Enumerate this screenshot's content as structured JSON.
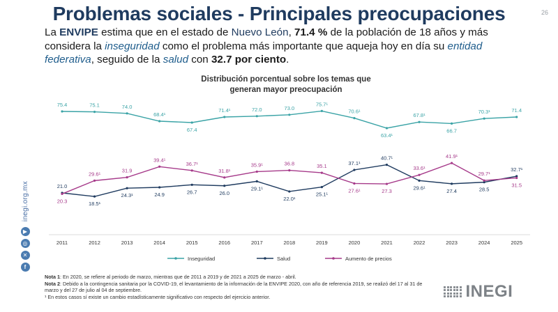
{
  "page": {
    "title": "Problemas sociales - Principales preocupaciones",
    "number": "26"
  },
  "intro": {
    "p1": "La ",
    "p2": "ENVIPE",
    "p3": " estima que en el estado de ",
    "p4": "Nuevo León",
    "p5": ", ",
    "p6": "71.4 %",
    "p7": " de la población de 18 años y más considera la ",
    "p8": "inseguridad",
    "p9": " como el problema más importante que aqueja hoy en día su ",
    "p10": "entidad federativa",
    "p11": ", seguido de la ",
    "p12": "salud",
    "p13": " con ",
    "p14": "32.7 por ciento",
    "p15": "."
  },
  "chart_data": {
    "type": "line",
    "title": "Distribución porcentual sobre los temas que generan mayor preocupación",
    "title_line1": "Distribución porcentual sobre los temas que",
    "title_line2": "generan mayor preocupación",
    "categories": [
      "2011",
      "2012",
      "2013",
      "2014",
      "2015",
      "2016",
      "2017",
      "2018",
      "2019",
      "2020",
      "2021",
      "2022",
      "2023",
      "2024",
      "2025"
    ],
    "ylim": [
      15,
      80
    ],
    "series": [
      {
        "name": "Inseguridad",
        "color": "#3aa3a6",
        "values": [
          75.4,
          75.1,
          74.0,
          68.4,
          67.4,
          71.4,
          72.0,
          73.0,
          75.7,
          70.6,
          63.4,
          67.8,
          66.7,
          70.3,
          71.4
        ],
        "labels": [
          "75.4",
          "75.1",
          "74.0",
          "68.4¹",
          "67.4",
          "71.4¹",
          "72.0",
          "73.0",
          "75.7¹",
          "70.6¹",
          "63.4¹",
          "67.8¹",
          "66.7",
          "70.3¹",
          "71.4"
        ],
        "label_pos": [
          "above",
          "above",
          "above",
          "above",
          "below",
          "above",
          "above",
          "above",
          "above",
          "above",
          "below",
          "above",
          "below",
          "above",
          "above"
        ]
      },
      {
        "name": "Salud",
        "color": "#1f3b5f",
        "values": [
          21.0,
          18.5,
          24.3,
          24.9,
          26.7,
          26.0,
          29.1,
          22.0,
          25.1,
          37.1,
          40.7,
          29.6,
          27.4,
          28.5,
          32.7
        ],
        "labels": [
          "21.0",
          "18.5¹",
          "24.3¹",
          "24.9",
          "26.7",
          "26.0",
          "29.1¹",
          "22.0¹",
          "25.1¹",
          "37.1¹",
          "40.7¹",
          "29.6¹",
          "27.4",
          "28.5",
          "32.7¹"
        ],
        "label_pos": [
          "above",
          "below",
          "below",
          "below",
          "below",
          "below",
          "below",
          "below",
          "below",
          "above",
          "above",
          "below",
          "below",
          "below",
          "above"
        ]
      },
      {
        "name": "Aumento de precios",
        "color": "#a63a8a",
        "values": [
          20.3,
          29.6,
          31.9,
          39.4,
          36.7,
          31.8,
          35.9,
          36.8,
          35.1,
          27.6,
          27.3,
          33.6,
          41.9,
          29.7,
          31.5
        ],
        "labels": [
          "20.3",
          "29.6¹",
          "31.9",
          "39.4¹",
          "36.7¹",
          "31.8¹",
          "35.9¹",
          "36.8",
          "35.1",
          "27.6¹",
          "27.3",
          "33.6¹",
          "41.9¹",
          "29.7¹",
          "31.5"
        ],
        "label_pos": [
          "below",
          "above",
          "above",
          "above",
          "above",
          "above",
          "above",
          "above",
          "above",
          "below",
          "below",
          "above",
          "above",
          "above",
          "below"
        ]
      }
    ],
    "legend_position": "bottom"
  },
  "sidebar": {
    "site": "inegi.org.mx",
    "icons": [
      "facebook-icon",
      "x-icon",
      "instagram-icon",
      "youtube-icon"
    ]
  },
  "notes": {
    "n1_label": "Nota 1",
    "n1_text": ": En 2020, se refiere al periodo de marzo, mientras que de 2011 a 2019 y de 2021 a 2025 de marzo - abril.",
    "n2_label": "Nota 2",
    "n2_text": ": Debido a la contingencia sanitaria por la COVID-19, el levantamiento de la información de la ENVIPE 2020, con año de referencia 2019, se realizó del 17 al 31 de marzo y del 27 de julio al 04 de septiembre.",
    "n3": "¹ En estos casos sí existe un cambio estadísticamente significativo con respecto del ejercicio anterior."
  },
  "logo": {
    "text": "INEGI"
  }
}
